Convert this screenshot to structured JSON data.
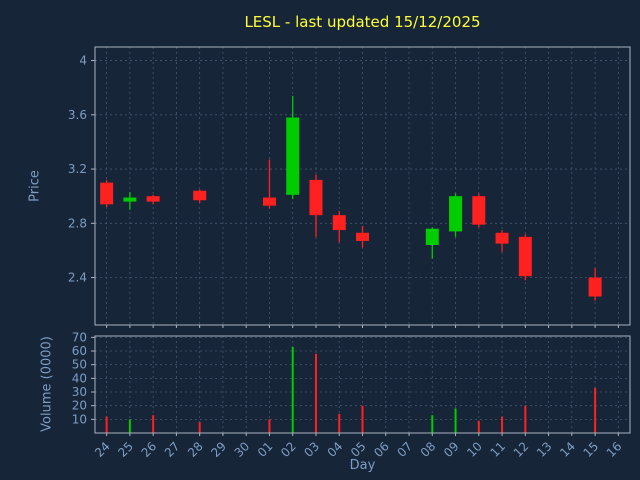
{
  "chart_data": {
    "type": "candlestick",
    "title": "LESL - last updated 15/12/2025",
    "xlabel": "Day",
    "ylabel": "Price",
    "ylabel2": "Volume (0000)",
    "legend": "none",
    "grid": "on",
    "categories": [
      "24",
      "25",
      "26",
      "27",
      "28",
      "29",
      "30",
      "01",
      "02",
      "03",
      "04",
      "05",
      "06",
      "07",
      "08",
      "09",
      "10",
      "11",
      "12",
      "13",
      "14",
      "15",
      "16"
    ],
    "price_range": [
      2.05,
      4.1
    ],
    "price_ticks": [
      {
        "label": "4",
        "value": 4.0
      },
      {
        "label": "3.6",
        "value": 3.6
      },
      {
        "label": "3.2",
        "value": 3.2
      },
      {
        "label": "2.8",
        "value": 2.8
      },
      {
        "label": "2.4",
        "value": 2.4
      }
    ],
    "volume_range": [
      0,
      71
    ],
    "volume_ticks": [
      {
        "label": "70",
        "value": 70
      },
      {
        "label": "60",
        "value": 60
      },
      {
        "label": "50",
        "value": 50
      },
      {
        "label": "40",
        "value": 40
      },
      {
        "label": "30",
        "value": 30
      },
      {
        "label": "20",
        "value": 20
      },
      {
        "label": "10",
        "value": 10
      }
    ],
    "candles": [
      {
        "day": "24",
        "open": 3.1,
        "high": 3.12,
        "low": 2.92,
        "close": 2.94,
        "volume": 12
      },
      {
        "day": "25",
        "open": 2.96,
        "high": 3.03,
        "low": 2.9,
        "close": 2.99,
        "volume": 10
      },
      {
        "day": "26",
        "open": 3.0,
        "high": 3.01,
        "low": 2.94,
        "close": 2.96,
        "volume": 13
      },
      {
        "day": "28",
        "open": 3.04,
        "high": 3.05,
        "low": 2.95,
        "close": 2.97,
        "volume": 8
      },
      {
        "day": "01",
        "open": 2.99,
        "high": 3.27,
        "low": 2.91,
        "close": 2.93,
        "volume": 10
      },
      {
        "day": "02",
        "open": 3.01,
        "high": 3.74,
        "low": 2.98,
        "close": 3.58,
        "volume": 63
      },
      {
        "day": "03",
        "open": 3.12,
        "high": 3.16,
        "low": 2.7,
        "close": 2.86,
        "volume": 58
      },
      {
        "day": "04",
        "open": 2.86,
        "high": 2.89,
        "low": 2.66,
        "close": 2.75,
        "volume": 14
      },
      {
        "day": "05",
        "open": 2.73,
        "high": 2.78,
        "low": 2.62,
        "close": 2.67,
        "volume": 20
      },
      {
        "day": "08",
        "open": 2.64,
        "high": 2.77,
        "low": 2.54,
        "close": 2.76,
        "volume": 13
      },
      {
        "day": "09",
        "open": 2.74,
        "high": 3.02,
        "low": 2.7,
        "close": 3.0,
        "volume": 18
      },
      {
        "day": "10",
        "open": 3.0,
        "high": 3.02,
        "low": 2.77,
        "close": 2.79,
        "volume": 9
      },
      {
        "day": "11",
        "open": 2.73,
        "high": 2.75,
        "low": 2.59,
        "close": 2.65,
        "volume": 12
      },
      {
        "day": "12",
        "open": 2.7,
        "high": 2.72,
        "low": 2.38,
        "close": 2.41,
        "volume": 20
      },
      {
        "day": "15",
        "open": 2.4,
        "high": 2.47,
        "low": 2.23,
        "close": 2.26,
        "volume": 33
      }
    ],
    "colors": {
      "background": "#172539",
      "up": "#00cc00",
      "down": "#ff2020",
      "grid": "#46566e",
      "spine": "#aab4c0",
      "text": "#7d9dc2",
      "title": "#ffff33"
    }
  }
}
